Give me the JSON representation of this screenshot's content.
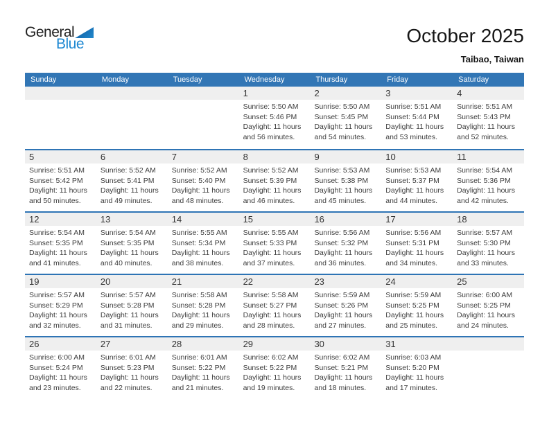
{
  "logo": {
    "word1": "General",
    "word2": "Blue"
  },
  "header": {
    "title": "October 2025",
    "subtitle": "Taibao, Taiwan"
  },
  "colors": {
    "header_blue": "#3276b5",
    "row_line_blue": "#2e74b5",
    "band_gray": "#efefef",
    "logo_blue": "#1e88d2",
    "logo_triangle": "#0e5a9d"
  },
  "calendar": {
    "weekdays": [
      "Sunday",
      "Monday",
      "Tuesday",
      "Wednesday",
      "Thursday",
      "Friday",
      "Saturday"
    ],
    "weeks": [
      [
        {
          "day": "",
          "lines": []
        },
        {
          "day": "",
          "lines": []
        },
        {
          "day": "",
          "lines": []
        },
        {
          "day": "1",
          "lines": [
            "Sunrise: 5:50 AM",
            "Sunset: 5:46 PM",
            "Daylight: 11 hours",
            "and 56 minutes."
          ]
        },
        {
          "day": "2",
          "lines": [
            "Sunrise: 5:50 AM",
            "Sunset: 5:45 PM",
            "Daylight: 11 hours",
            "and 54 minutes."
          ]
        },
        {
          "day": "3",
          "lines": [
            "Sunrise: 5:51 AM",
            "Sunset: 5:44 PM",
            "Daylight: 11 hours",
            "and 53 minutes."
          ]
        },
        {
          "day": "4",
          "lines": [
            "Sunrise: 5:51 AM",
            "Sunset: 5:43 PM",
            "Daylight: 11 hours",
            "and 52 minutes."
          ]
        }
      ],
      [
        {
          "day": "5",
          "lines": [
            "Sunrise: 5:51 AM",
            "Sunset: 5:42 PM",
            "Daylight: 11 hours",
            "and 50 minutes."
          ]
        },
        {
          "day": "6",
          "lines": [
            "Sunrise: 5:52 AM",
            "Sunset: 5:41 PM",
            "Daylight: 11 hours",
            "and 49 minutes."
          ]
        },
        {
          "day": "7",
          "lines": [
            "Sunrise: 5:52 AM",
            "Sunset: 5:40 PM",
            "Daylight: 11 hours",
            "and 48 minutes."
          ]
        },
        {
          "day": "8",
          "lines": [
            "Sunrise: 5:52 AM",
            "Sunset: 5:39 PM",
            "Daylight: 11 hours",
            "and 46 minutes."
          ]
        },
        {
          "day": "9",
          "lines": [
            "Sunrise: 5:53 AM",
            "Sunset: 5:38 PM",
            "Daylight: 11 hours",
            "and 45 minutes."
          ]
        },
        {
          "day": "10",
          "lines": [
            "Sunrise: 5:53 AM",
            "Sunset: 5:37 PM",
            "Daylight: 11 hours",
            "and 44 minutes."
          ]
        },
        {
          "day": "11",
          "lines": [
            "Sunrise: 5:54 AM",
            "Sunset: 5:36 PM",
            "Daylight: 11 hours",
            "and 42 minutes."
          ]
        }
      ],
      [
        {
          "day": "12",
          "lines": [
            "Sunrise: 5:54 AM",
            "Sunset: 5:35 PM",
            "Daylight: 11 hours",
            "and 41 minutes."
          ]
        },
        {
          "day": "13",
          "lines": [
            "Sunrise: 5:54 AM",
            "Sunset: 5:35 PM",
            "Daylight: 11 hours",
            "and 40 minutes."
          ]
        },
        {
          "day": "14",
          "lines": [
            "Sunrise: 5:55 AM",
            "Sunset: 5:34 PM",
            "Daylight: 11 hours",
            "and 38 minutes."
          ]
        },
        {
          "day": "15",
          "lines": [
            "Sunrise: 5:55 AM",
            "Sunset: 5:33 PM",
            "Daylight: 11 hours",
            "and 37 minutes."
          ]
        },
        {
          "day": "16",
          "lines": [
            "Sunrise: 5:56 AM",
            "Sunset: 5:32 PM",
            "Daylight: 11 hours",
            "and 36 minutes."
          ]
        },
        {
          "day": "17",
          "lines": [
            "Sunrise: 5:56 AM",
            "Sunset: 5:31 PM",
            "Daylight: 11 hours",
            "and 34 minutes."
          ]
        },
        {
          "day": "18",
          "lines": [
            "Sunrise: 5:57 AM",
            "Sunset: 5:30 PM",
            "Daylight: 11 hours",
            "and 33 minutes."
          ]
        }
      ],
      [
        {
          "day": "19",
          "lines": [
            "Sunrise: 5:57 AM",
            "Sunset: 5:29 PM",
            "Daylight: 11 hours",
            "and 32 minutes."
          ]
        },
        {
          "day": "20",
          "lines": [
            "Sunrise: 5:57 AM",
            "Sunset: 5:28 PM",
            "Daylight: 11 hours",
            "and 31 minutes."
          ]
        },
        {
          "day": "21",
          "lines": [
            "Sunrise: 5:58 AM",
            "Sunset: 5:28 PM",
            "Daylight: 11 hours",
            "and 29 minutes."
          ]
        },
        {
          "day": "22",
          "lines": [
            "Sunrise: 5:58 AM",
            "Sunset: 5:27 PM",
            "Daylight: 11 hours",
            "and 28 minutes."
          ]
        },
        {
          "day": "23",
          "lines": [
            "Sunrise: 5:59 AM",
            "Sunset: 5:26 PM",
            "Daylight: 11 hours",
            "and 27 minutes."
          ]
        },
        {
          "day": "24",
          "lines": [
            "Sunrise: 5:59 AM",
            "Sunset: 5:25 PM",
            "Daylight: 11 hours",
            "and 25 minutes."
          ]
        },
        {
          "day": "25",
          "lines": [
            "Sunrise: 6:00 AM",
            "Sunset: 5:25 PM",
            "Daylight: 11 hours",
            "and 24 minutes."
          ]
        }
      ],
      [
        {
          "day": "26",
          "lines": [
            "Sunrise: 6:00 AM",
            "Sunset: 5:24 PM",
            "Daylight: 11 hours",
            "and 23 minutes."
          ]
        },
        {
          "day": "27",
          "lines": [
            "Sunrise: 6:01 AM",
            "Sunset: 5:23 PM",
            "Daylight: 11 hours",
            "and 22 minutes."
          ]
        },
        {
          "day": "28",
          "lines": [
            "Sunrise: 6:01 AM",
            "Sunset: 5:22 PM",
            "Daylight: 11 hours",
            "and 21 minutes."
          ]
        },
        {
          "day": "29",
          "lines": [
            "Sunrise: 6:02 AM",
            "Sunset: 5:22 PM",
            "Daylight: 11 hours",
            "and 19 minutes."
          ]
        },
        {
          "day": "30",
          "lines": [
            "Sunrise: 6:02 AM",
            "Sunset: 5:21 PM",
            "Daylight: 11 hours",
            "and 18 minutes."
          ]
        },
        {
          "day": "31",
          "lines": [
            "Sunrise: 6:03 AM",
            "Sunset: 5:20 PM",
            "Daylight: 11 hours",
            "and 17 minutes."
          ]
        },
        {
          "day": "",
          "lines": []
        }
      ]
    ]
  }
}
